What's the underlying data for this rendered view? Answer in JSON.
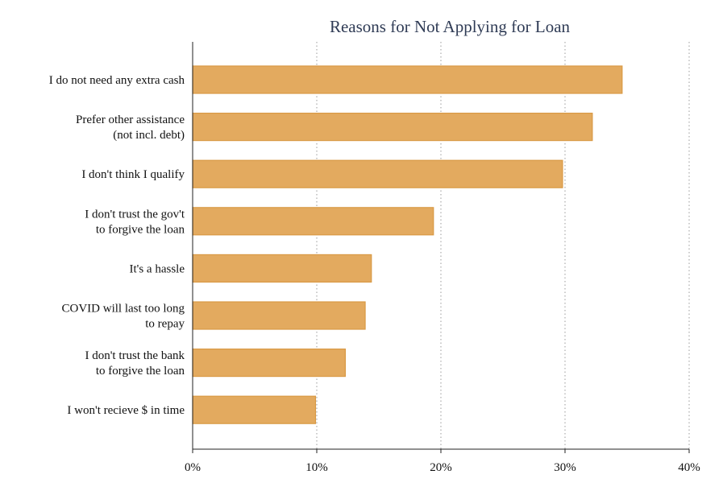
{
  "chart_data": {
    "type": "bar",
    "orientation": "horizontal",
    "title": "Reasons for Not Applying for Loan",
    "xlabel": "",
    "ylabel": "",
    "xlim": [
      0,
      40
    ],
    "x_ticks": [
      0,
      10,
      20,
      30,
      40
    ],
    "x_tick_labels": [
      "0%",
      "10%",
      "20%",
      "30%",
      "40%"
    ],
    "grid": "vertical dotted",
    "legend": "none",
    "categories": [
      [
        "I do not need any extra cash"
      ],
      [
        "Prefer other assistance",
        "(not incl. debt)"
      ],
      [
        "I don't think I qualify"
      ],
      [
        "I don't trust the gov't",
        "to forgive the loan"
      ],
      [
        "It's a hassle"
      ],
      [
        "COVID will last too long",
        "to repay"
      ],
      [
        "I don't trust the bank",
        "to forgive the loan"
      ],
      [
        "I won't recieve $ in time"
      ]
    ],
    "values": [
      34.6,
      32.2,
      29.8,
      19.4,
      14.4,
      13.9,
      12.3,
      9.9
    ],
    "colors": {
      "bar_fill": "#e3aa5f",
      "bar_stroke": "#d99a45",
      "title": "#2f3b55",
      "grid": "#9a9a9a"
    }
  }
}
